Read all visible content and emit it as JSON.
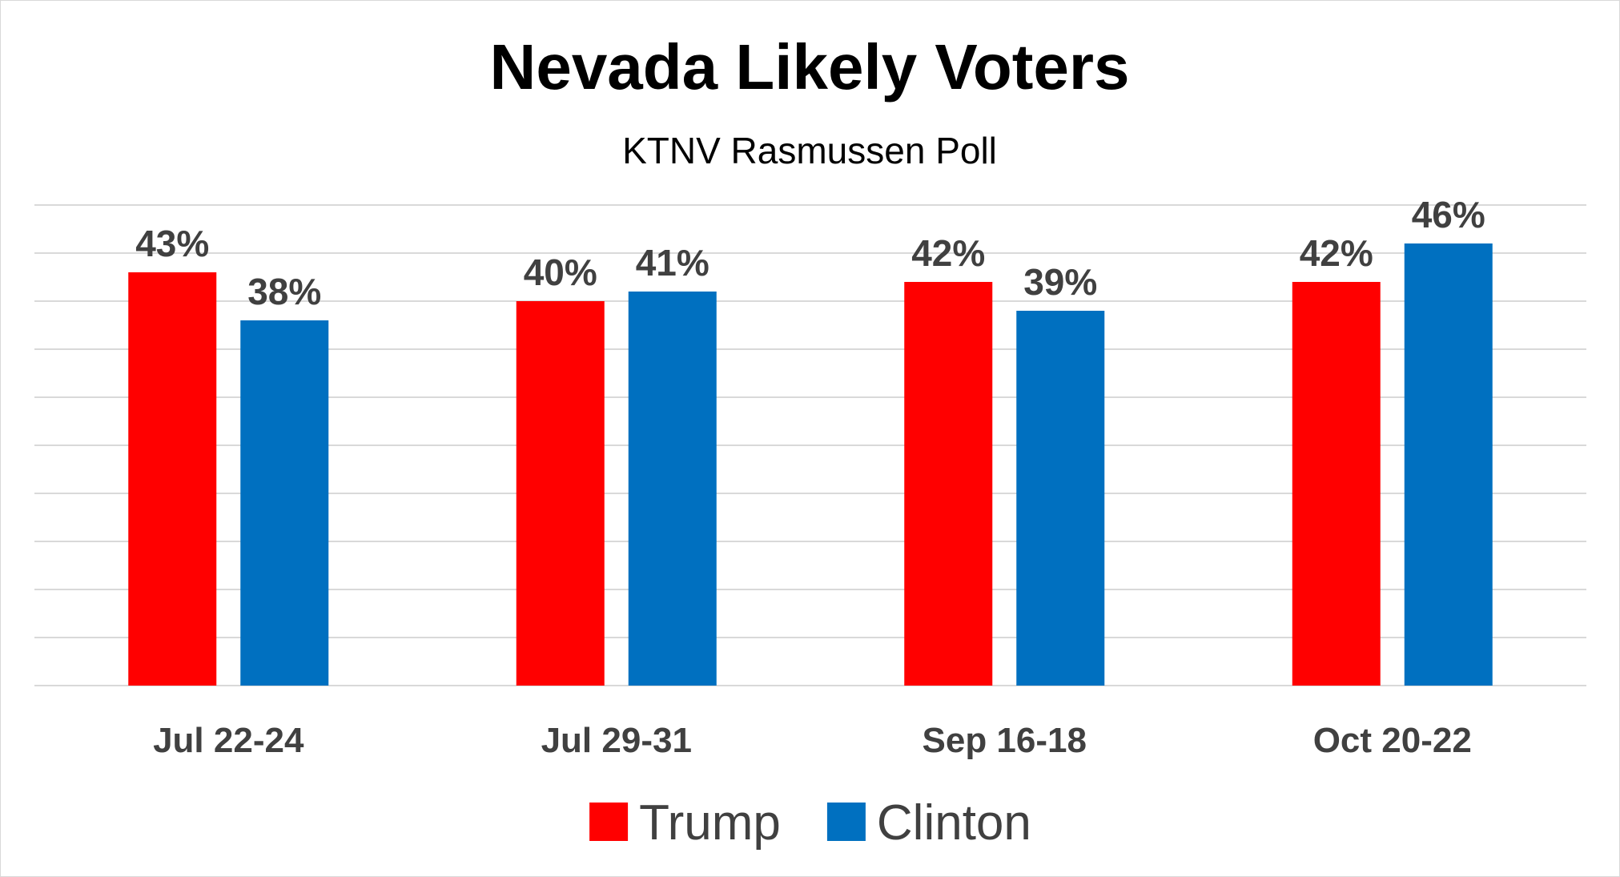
{
  "chart_data": {
    "type": "bar",
    "title": "Nevada Likely Voters",
    "subtitle": "KTNV Rasmussen Poll",
    "categories": [
      "Jul 22-24",
      "Jul 29-31",
      "Sep 16-18",
      "Oct 20-22"
    ],
    "series": [
      {
        "name": "Trump",
        "color": "#ff0000",
        "values": [
          43,
          40,
          42,
          42
        ],
        "labels": [
          "43%",
          "40%",
          "42%",
          "42%"
        ]
      },
      {
        "name": "Clinton",
        "color": "#0070c0",
        "values": [
          38,
          41,
          39,
          46
        ],
        "labels": [
          "38%",
          "41%",
          "39%",
          "46%"
        ]
      }
    ],
    "ylim": [
      0,
      50
    ],
    "grid": true,
    "legend": "bottom"
  }
}
